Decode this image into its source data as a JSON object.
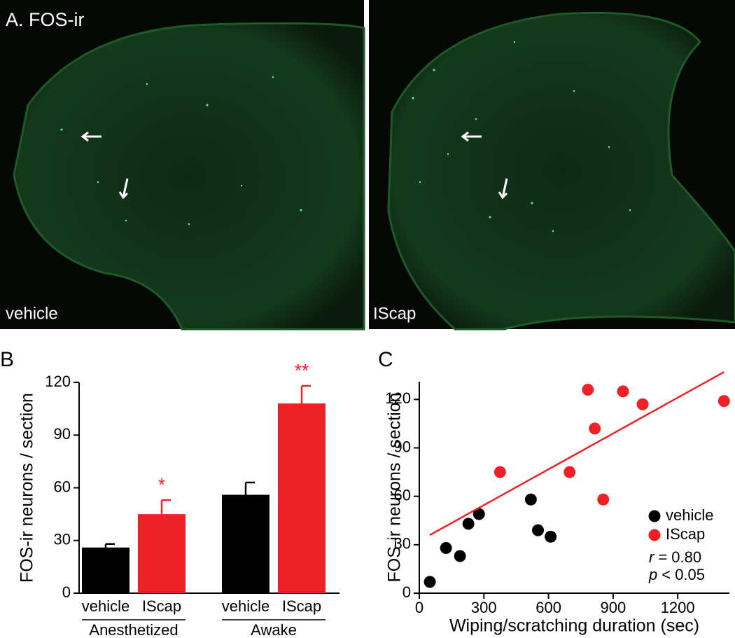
{
  "panel_a": {
    "title": "A. FOS-ir",
    "labels": [
      "vehicle",
      "IScap"
    ]
  },
  "chart_data": [
    {
      "type": "bar",
      "label": "B",
      "ylabel": "FOS-ir neurons / section",
      "groups": [
        "Anesthetized",
        "Awake"
      ],
      "series": [
        {
          "name": "vehicle",
          "color": "#000000",
          "values": [
            26,
            56
          ],
          "errors": [
            2,
            7
          ],
          "significance": [
            null,
            null
          ]
        },
        {
          "name": "IScap",
          "color": "#ee2127",
          "values": [
            45,
            108
          ],
          "errors": [
            8,
            10
          ],
          "significance": [
            "*",
            "**"
          ]
        }
      ],
      "ylim": [
        0,
        120
      ],
      "yticks": [
        0,
        30,
        60,
        90,
        120
      ]
    },
    {
      "type": "scatter",
      "label": "C",
      "xlabel": "Wiping/scratching duration (sec)",
      "ylabel": "FOS-ir neurons / section",
      "series": [
        {
          "name": "vehicle",
          "color": "#000000",
          "x": [
            49,
            124,
            189,
            228,
            277,
            518,
            551,
            610
          ],
          "values": [
            7,
            28,
            23,
            43,
            49,
            58,
            39,
            35
          ]
        },
        {
          "name": "IScap",
          "color": "#ee2127",
          "x": [
            375,
            698,
            783,
            815,
            854,
            946,
            1037,
            1415
          ],
          "values": [
            75,
            75,
            126,
            102,
            58,
            125,
            117,
            119
          ]
        }
      ],
      "fit_line": {
        "color": "#ee2127",
        "x": [
          49,
          1415
        ],
        "y": [
          36,
          137
        ]
      },
      "stats": [
        {
          "symbol": "r",
          "text": "= 0.80"
        },
        {
          "symbol": "p",
          "text": "< 0.05"
        }
      ],
      "xlim": [
        0,
        1440
      ],
      "xticks": [
        0,
        300,
        600,
        900,
        1200
      ],
      "ylim": [
        0,
        131
      ],
      "yticks": [
        0,
        30,
        60,
        90,
        120
      ]
    }
  ]
}
